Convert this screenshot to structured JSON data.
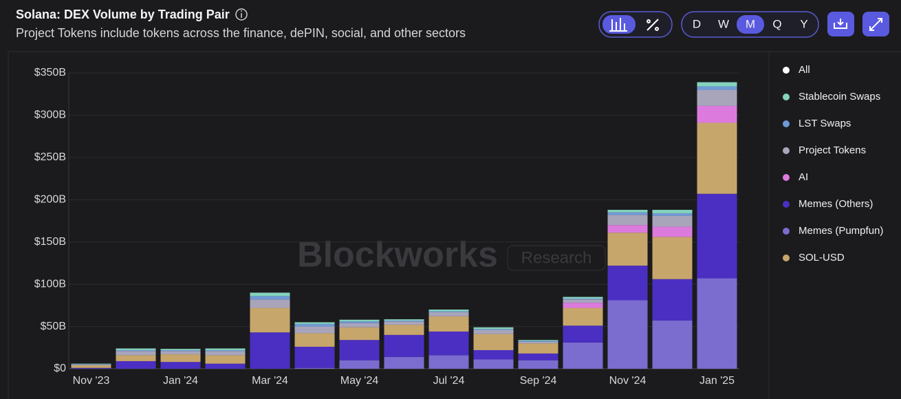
{
  "chart_data": {
    "type": "stacked_bar",
    "title": "Solana: DEX Volume by Trading Pair",
    "subtitle": "Project Tokens include tokens across the finance, dePIN, social, and other sectors",
    "period_buttons": [
      "D",
      "W",
      "M",
      "Q",
      "Y"
    ],
    "active_period": "M",
    "watermark": [
      "Blockworks",
      "Research"
    ],
    "legend_toggle": "All",
    "categories": [
      "Nov '23",
      null,
      "Jan '24",
      null,
      "Mar '24",
      null,
      "May '24",
      null,
      "Jul '24",
      null,
      "Sep '24",
      null,
      "Nov '24",
      null,
      "Jan '25"
    ],
    "series": [
      {
        "name": "Memes (Pumpfun)",
        "color": "#7b6ccf",
        "values": [
          0,
          0,
          0,
          0,
          0,
          1,
          10,
          14,
          16,
          11,
          10,
          31,
          81,
          57,
          107
        ]
      },
      {
        "name": "Memes (Others)",
        "color": "#4b2fc2",
        "values": [
          1,
          9,
          8,
          6,
          43,
          25,
          24,
          26,
          28,
          11,
          8,
          20,
          41,
          49,
          100
        ]
      },
      {
        "name": "SOL-USD",
        "color": "#c7a66c",
        "values": [
          3,
          7,
          9,
          10,
          29,
          16,
          15,
          12,
          18,
          19,
          12,
          21,
          39,
          50,
          84
        ]
      },
      {
        "name": "AI",
        "color": "#dc7ade",
        "values": [
          0,
          0,
          0,
          0,
          0,
          0,
          0,
          0,
          0,
          0,
          0,
          6,
          9,
          12,
          20
        ]
      },
      {
        "name": "Project Tokens",
        "color": "#a8a5bb",
        "values": [
          1,
          5,
          4,
          5,
          10,
          8,
          5,
          4,
          5,
          5,
          2,
          4,
          12,
          13,
          19
        ]
      },
      {
        "name": "LST Swaps",
        "color": "#6f9ad6",
        "values": [
          0.5,
          1,
          1,
          1,
          4,
          3,
          2,
          1,
          1,
          1,
          1,
          1,
          3,
          3,
          4
        ]
      },
      {
        "name": "Stablecoin Swaps",
        "color": "#85d3bd",
        "values": [
          0.5,
          2,
          1.5,
          2,
          4,
          2,
          2,
          1.5,
          2,
          2,
          1,
          2,
          3,
          4,
          5
        ]
      }
    ],
    "ylim": [
      0,
      350
    ],
    "yticks": [
      {
        "value": 0,
        "label": "$0"
      },
      {
        "value": 50,
        "label": "$50B"
      },
      {
        "value": 100,
        "label": "$100B"
      },
      {
        "value": 150,
        "label": "$150B"
      },
      {
        "value": 200,
        "label": "$200B"
      },
      {
        "value": 250,
        "label": "$250B"
      },
      {
        "value": 300,
        "label": "$300B"
      },
      {
        "value": 350,
        "label": "$350B"
      }
    ],
    "grid": true
  }
}
